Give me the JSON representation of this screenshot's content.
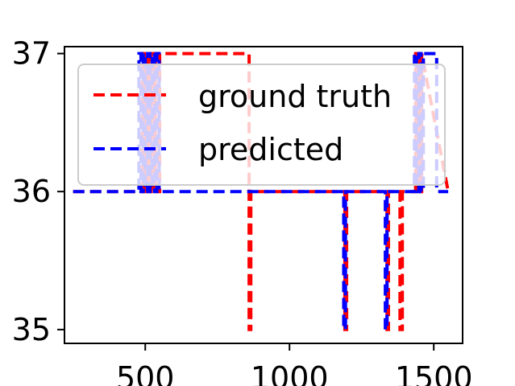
{
  "chart_data": {
    "type": "line",
    "xlim": [
      220,
      1600
    ],
    "ylim": [
      34.9,
      37.05
    ],
    "x_ticks": [
      500,
      1000,
      1500
    ],
    "x_tick_labels": [
      "500",
      "1000",
      "1500"
    ],
    "y_ticks": [
      35,
      36,
      37
    ],
    "y_tick_labels": [
      "35",
      "36",
      "37"
    ],
    "grid": false,
    "legend_position": "top-right",
    "series": [
      {
        "name": "ground truth",
        "color": "#ff0000",
        "style": "dashed",
        "x": [
          250,
          490,
          490,
          497,
          497,
          505,
          505,
          512,
          512,
          520,
          520,
          528,
          528,
          535,
          535,
          542,
          542,
          550,
          550,
          860,
          860,
          866,
          866,
          1192,
          1192,
          1198,
          1198,
          1338,
          1338,
          1343,
          1343,
          1383,
          1383,
          1391,
          1391,
          1437,
          1437,
          1442,
          1442,
          1448,
          1448,
          1453,
          1453,
          1458,
          1458,
          1550
        ],
        "y": [
          36,
          36,
          37,
          37,
          36,
          36,
          37,
          37,
          36,
          36,
          37,
          37,
          36,
          36,
          37,
          37,
          36,
          36,
          37,
          37,
          35,
          35,
          36,
          36,
          35,
          35,
          36,
          36,
          35,
          35,
          36,
          36,
          35,
          35,
          36,
          36,
          37,
          37,
          36,
          36,
          37,
          37,
          36,
          36,
          37,
          36
        ]
      },
      {
        "name": "predicted",
        "color": "#0000ff",
        "style": "dashed",
        "x": [
          250,
          478,
          478,
          485,
          485,
          493,
          493,
          500,
          500,
          508,
          508,
          516,
          516,
          524,
          524,
          532,
          532,
          540,
          540,
          548,
          548,
          1188,
          1188,
          1194,
          1194,
          1332,
          1332,
          1338,
          1338,
          1433,
          1433,
          1440,
          1440,
          1448,
          1448,
          1456,
          1456,
          1464,
          1464,
          1510,
          1510,
          1550
        ],
        "y": [
          36,
          36,
          37,
          37,
          36,
          36,
          37,
          37,
          36,
          36,
          37,
          37,
          36,
          36,
          37,
          37,
          36,
          36,
          37,
          37,
          36,
          36,
          35,
          35,
          36,
          36,
          35,
          35,
          36,
          36,
          37,
          37,
          36,
          36,
          37,
          37,
          36,
          36,
          37,
          37,
          36,
          36
        ]
      }
    ]
  }
}
